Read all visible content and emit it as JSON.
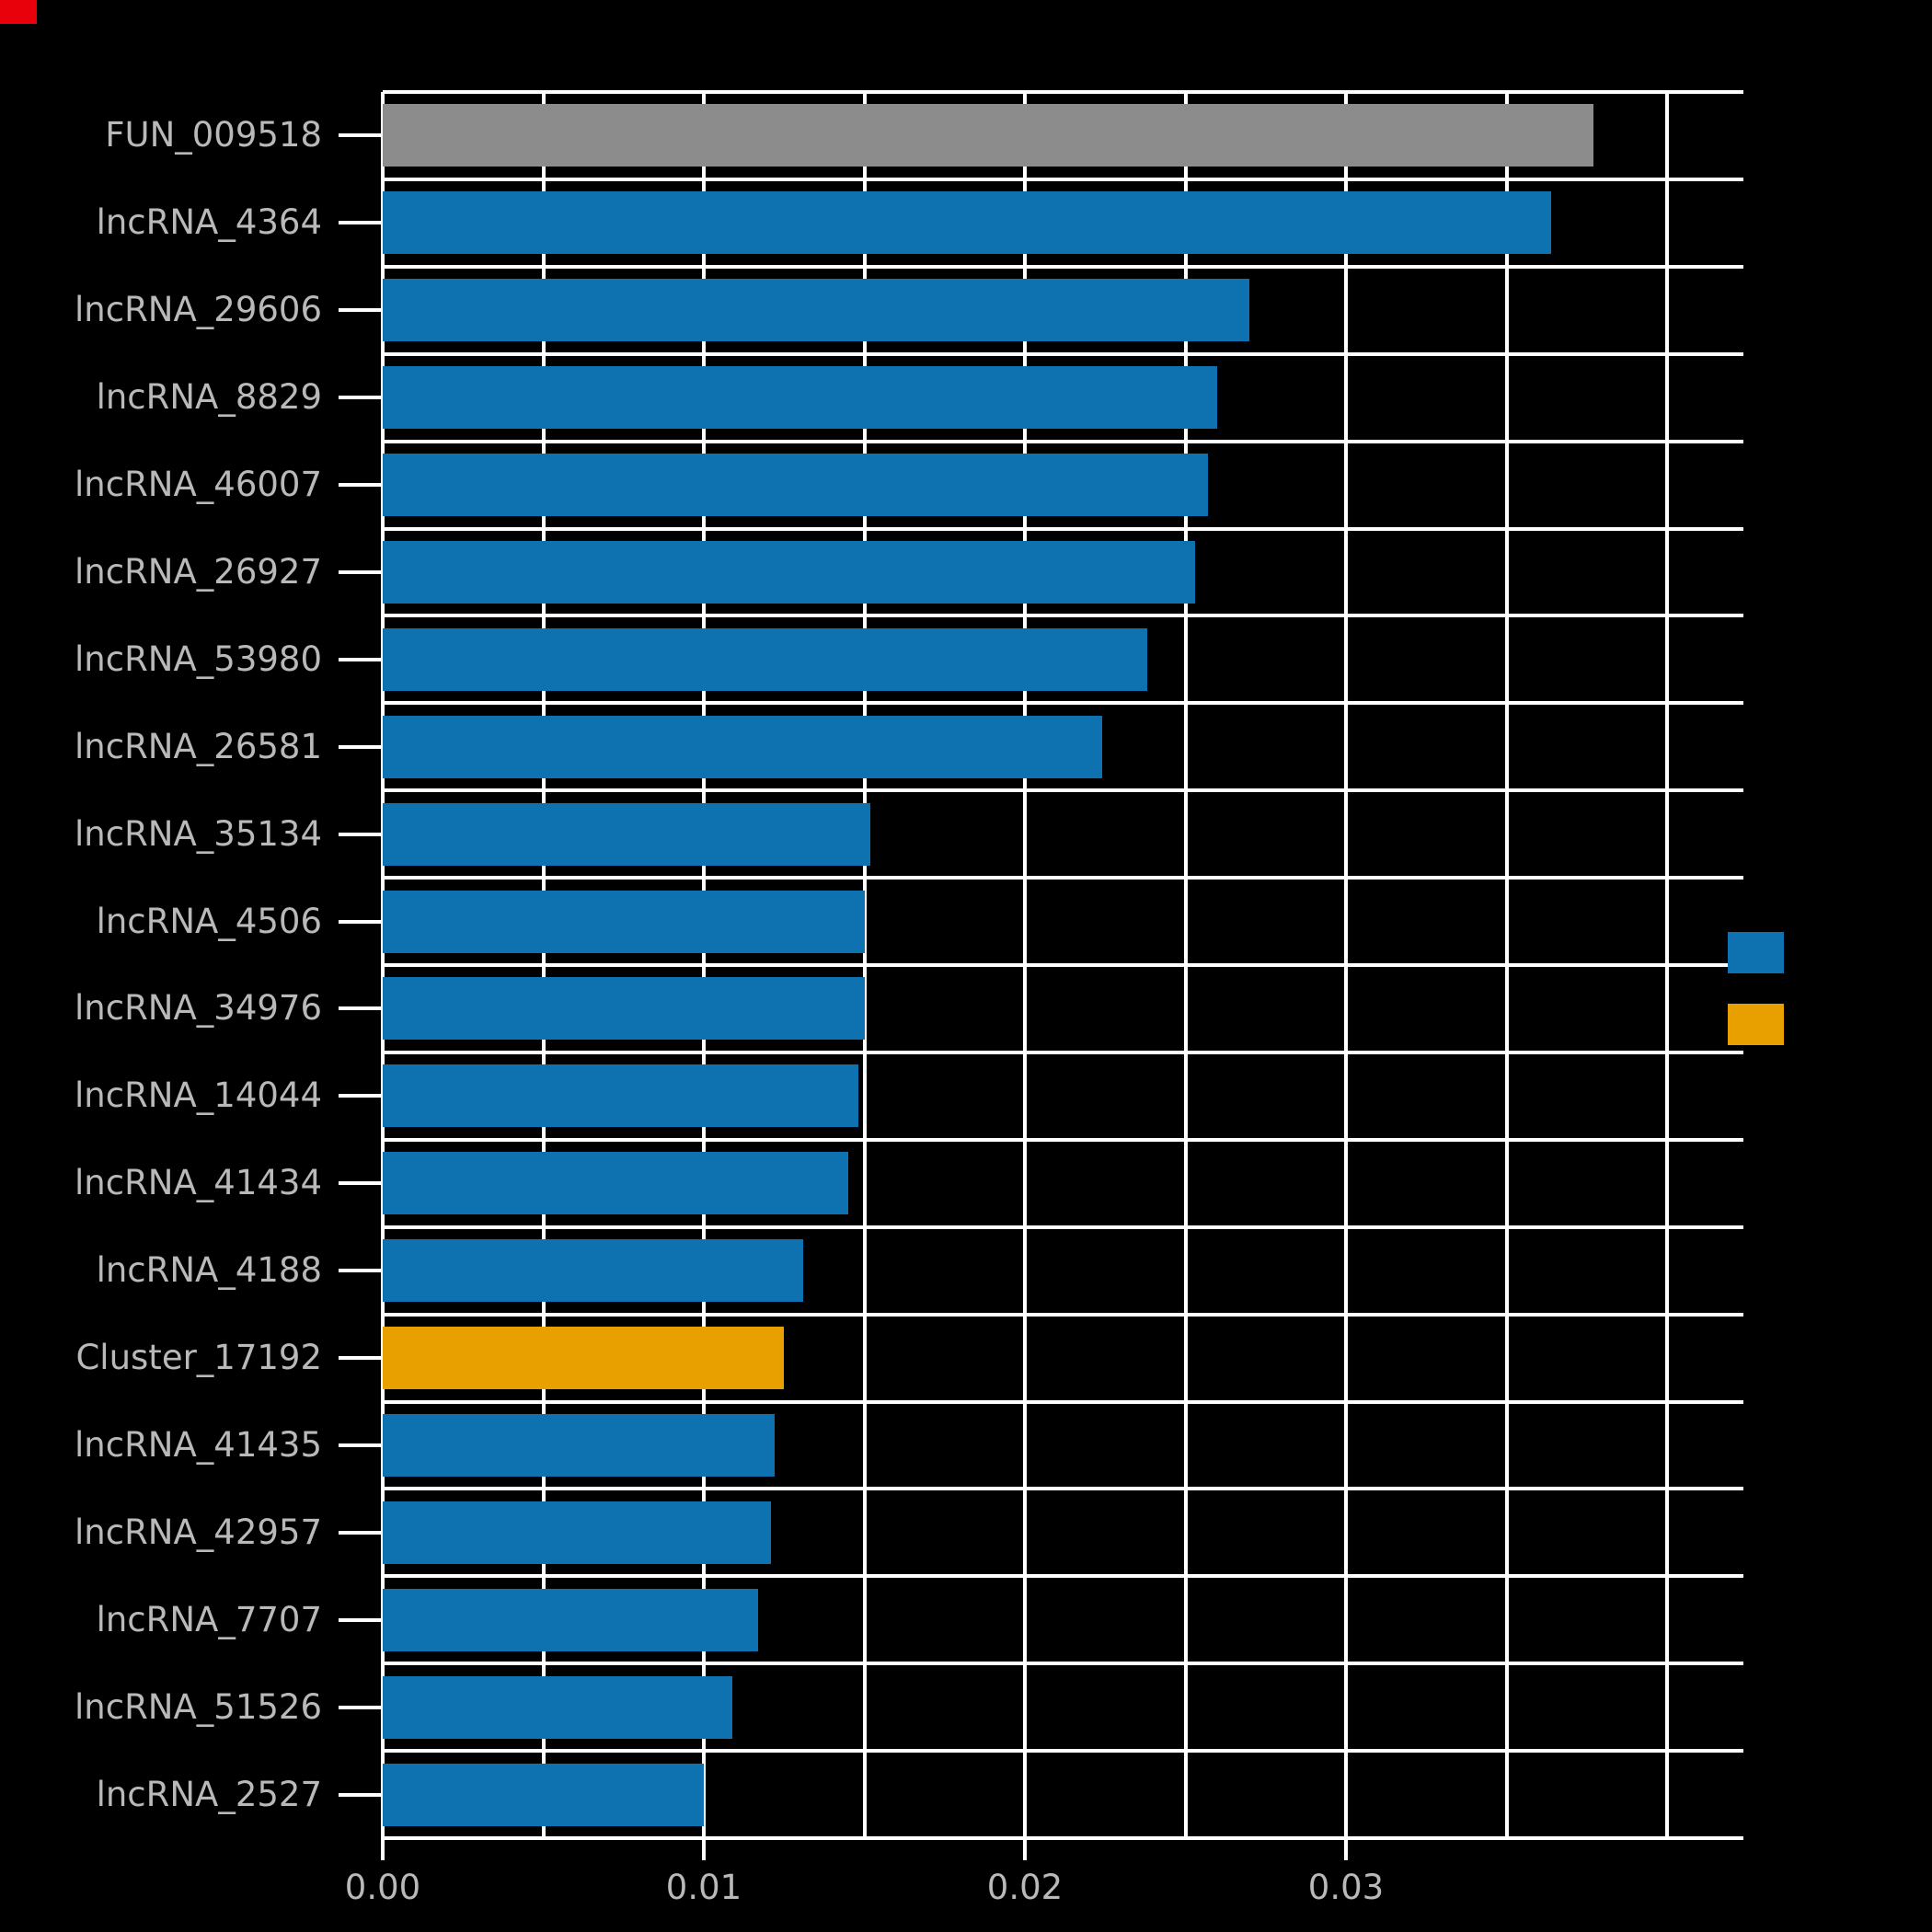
{
  "chart": {
    "colors": {
      "background": "#000000",
      "grid": "#ffffff",
      "axis_text": "#b9b9b9",
      "blue": "#0e72b1",
      "orange": "#e8a000",
      "gray": "#8c8c8c",
      "corner_mark": "#e8000b"
    },
    "chart_data": {
      "type": "bar",
      "orientation": "horizontal",
      "title": "",
      "xlabel": "",
      "ylabel": "",
      "xlim": [
        0,
        0.04
      ],
      "grid_interval": 0.005,
      "grid": true,
      "categories": [
        "FUN_009518",
        "lncRNA_4364",
        "lncRNA_29606",
        "lncRNA_8829",
        "lncRNA_46007",
        "lncRNA_26927",
        "lncRNA_53980",
        "lncRNA_26581",
        "lncRNA_35134",
        "lncRNA_4506",
        "lncRNA_34976",
        "lncRNA_14044",
        "lncRNA_41434",
        "lncRNA_4188",
        "Cluster_17192",
        "lncRNA_41435",
        "lncRNA_42957",
        "lncRNA_7707",
        "lncRNA_51526",
        "lncRNA_2527"
      ],
      "values": [
        0.0377,
        0.0364,
        0.027,
        0.026,
        0.0257,
        0.0253,
        0.0238,
        0.0224,
        0.0152,
        0.015,
        0.015,
        0.0148,
        0.0145,
        0.0131,
        0.0125,
        0.0122,
        0.0121,
        0.0117,
        0.0109,
        0.01
      ],
      "bar_colors": [
        "gray",
        "blue",
        "blue",
        "blue",
        "blue",
        "blue",
        "blue",
        "blue",
        "blue",
        "blue",
        "blue",
        "blue",
        "blue",
        "blue",
        "orange",
        "blue",
        "blue",
        "blue",
        "blue",
        "blue"
      ],
      "x_ticks": [
        {
          "value": 0.0,
          "label": "0.00"
        },
        {
          "value": 0.01,
          "label": "0.01"
        },
        {
          "value": 0.02,
          "label": "0.02"
        },
        {
          "value": 0.03,
          "label": "0.03"
        }
      ],
      "legend": {
        "position": "right",
        "items": [
          {
            "swatch_color": "blue",
            "label": ""
          },
          {
            "swatch_color": "orange",
            "label": ""
          }
        ]
      }
    }
  }
}
